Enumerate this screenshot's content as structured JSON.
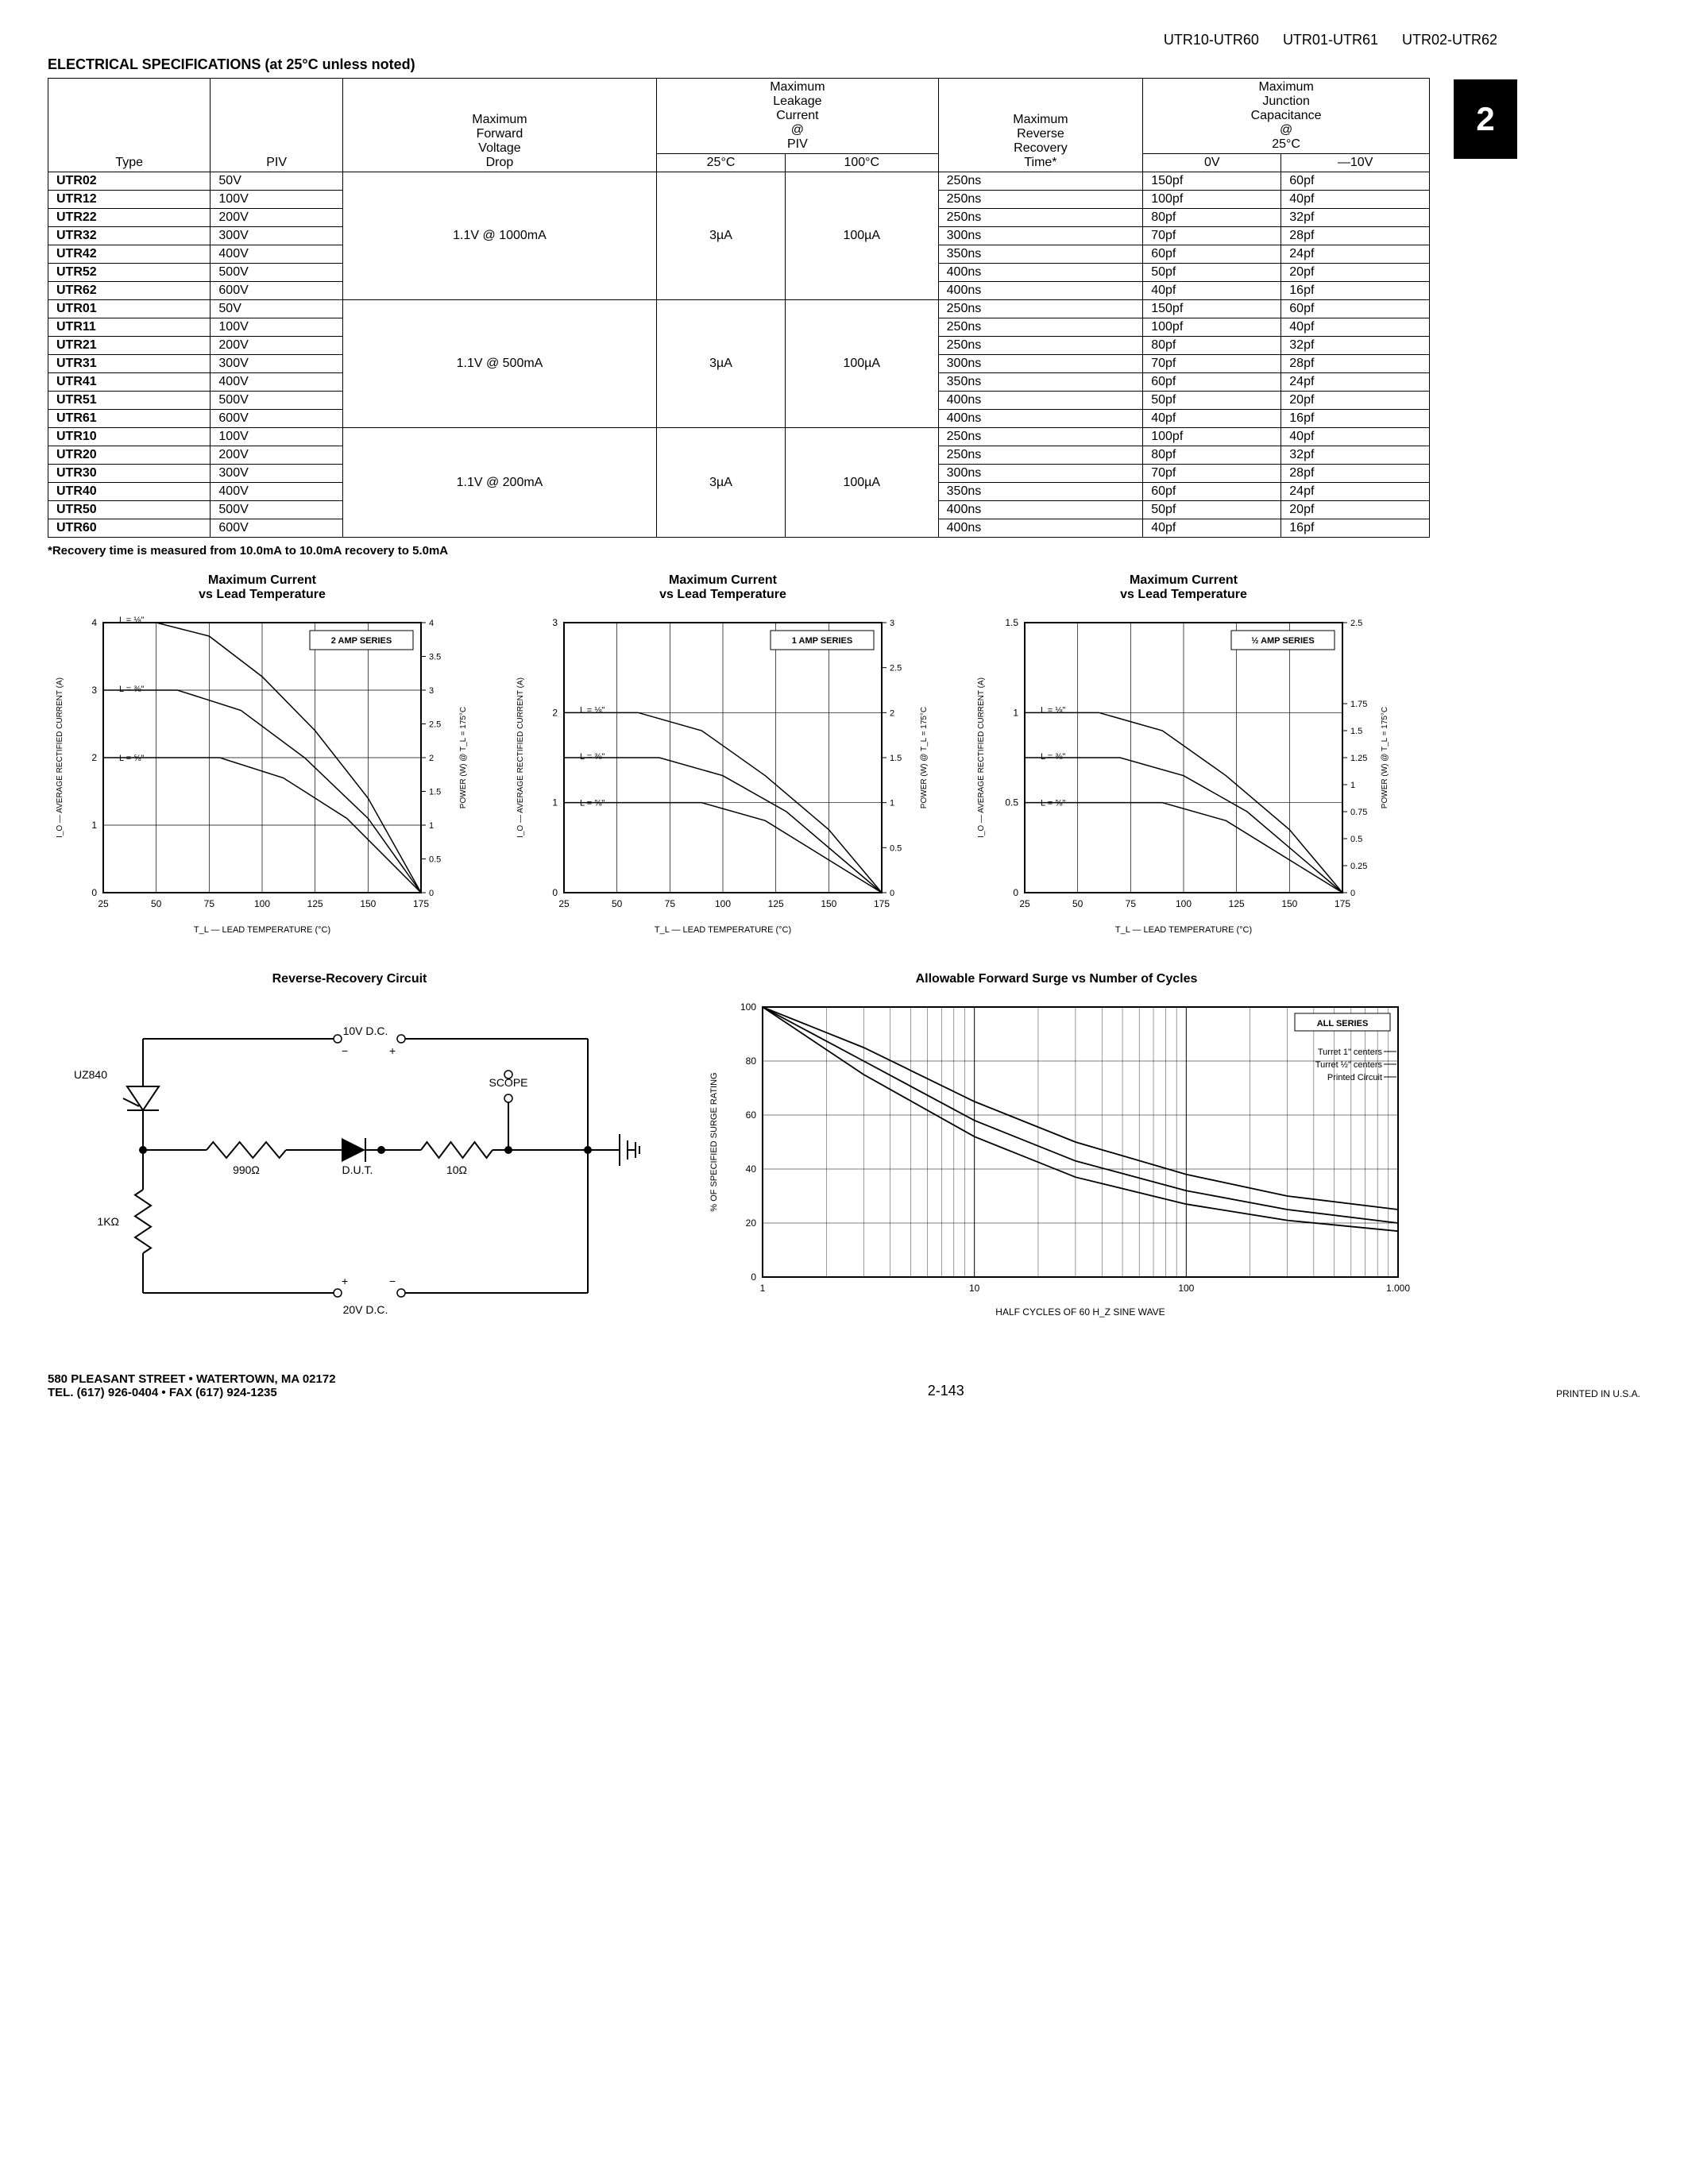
{
  "header": {
    "parts": [
      "UTR10-UTR60",
      "UTR01-UTR61",
      "UTR02-UTR62"
    ]
  },
  "section_title": "ELECTRICAL SPECIFICATIONS (at 25°C unless noted)",
  "tab_number": "2",
  "table": {
    "columns": {
      "type": "Type",
      "piv": "PIV",
      "fwd": "Maximum Forward Voltage Drop",
      "leak": "Maximum Leakage Current @ PIV",
      "leak_25": "25°C",
      "leak_100": "100°C",
      "rec": "Maximum Reverse Recovery Time*",
      "cap": "Maximum Junction Capacitance @ 25°C",
      "cap_0": "0V",
      "cap_10": "—10V"
    },
    "groups": [
      {
        "fwd": "1.1V @ 1000mA",
        "leak25": "3µA",
        "leak100": "100µA",
        "rows": [
          {
            "type": "UTR02",
            "piv": "50V",
            "rec": "250ns",
            "c0": "150pf",
            "c10": "60pf"
          },
          {
            "type": "UTR12",
            "piv": "100V",
            "rec": "250ns",
            "c0": "100pf",
            "c10": "40pf"
          },
          {
            "type": "UTR22",
            "piv": "200V",
            "rec": "250ns",
            "c0": "80pf",
            "c10": "32pf"
          },
          {
            "type": "UTR32",
            "piv": "300V",
            "rec": "300ns",
            "c0": "70pf",
            "c10": "28pf"
          },
          {
            "type": "UTR42",
            "piv": "400V",
            "rec": "350ns",
            "c0": "60pf",
            "c10": "24pf"
          },
          {
            "type": "UTR52",
            "piv": "500V",
            "rec": "400ns",
            "c0": "50pf",
            "c10": "20pf"
          },
          {
            "type": "UTR62",
            "piv": "600V",
            "rec": "400ns",
            "c0": "40pf",
            "c10": "16pf"
          }
        ]
      },
      {
        "fwd": "1.1V @ 500mA",
        "leak25": "3µA",
        "leak100": "100µA",
        "rows": [
          {
            "type": "UTR01",
            "piv": "50V",
            "rec": "250ns",
            "c0": "150pf",
            "c10": "60pf"
          },
          {
            "type": "UTR11",
            "piv": "100V",
            "rec": "250ns",
            "c0": "100pf",
            "c10": "40pf"
          },
          {
            "type": "UTR21",
            "piv": "200V",
            "rec": "250ns",
            "c0": "80pf",
            "c10": "32pf"
          },
          {
            "type": "UTR31",
            "piv": "300V",
            "rec": "300ns",
            "c0": "70pf",
            "c10": "28pf"
          },
          {
            "type": "UTR41",
            "piv": "400V",
            "rec": "350ns",
            "c0": "60pf",
            "c10": "24pf"
          },
          {
            "type": "UTR51",
            "piv": "500V",
            "rec": "400ns",
            "c0": "50pf",
            "c10": "20pf"
          },
          {
            "type": "UTR61",
            "piv": "600V",
            "rec": "400ns",
            "c0": "40pf",
            "c10": "16pf"
          }
        ]
      },
      {
        "fwd": "1.1V @ 200mA",
        "leak25": "3µA",
        "leak100": "100µA",
        "rows": [
          {
            "type": "UTR10",
            "piv": "100V",
            "rec": "250ns",
            "c0": "100pf",
            "c10": "40pf"
          },
          {
            "type": "UTR20",
            "piv": "200V",
            "rec": "250ns",
            "c0": "80pf",
            "c10": "32pf"
          },
          {
            "type": "UTR30",
            "piv": "300V",
            "rec": "300ns",
            "c0": "70pf",
            "c10": "28pf"
          },
          {
            "type": "UTR40",
            "piv": "400V",
            "rec": "350ns",
            "c0": "60pf",
            "c10": "24pf"
          },
          {
            "type": "UTR50",
            "piv": "500V",
            "rec": "400ns",
            "c0": "50pf",
            "c10": "20pf"
          },
          {
            "type": "UTR60",
            "piv": "600V",
            "rec": "400ns",
            "c0": "40pf",
            "c10": "16pf"
          }
        ]
      }
    ]
  },
  "footnote": "*Recovery time is measured from 10.0mA to 10.0mA recovery to 5.0mA",
  "charts": {
    "current_temp": {
      "title": "Maximum Current vs Lead Temperature",
      "xlabel": "T_L — LEAD TEMPERATURE (°C)",
      "ylabel_left": "I_O — AVERAGE RECTIFIED CURRENT (A)",
      "ylabel_right": "POWER (W) @ T_L = 175°C",
      "xlim": [
        25,
        175
      ],
      "xtick_step": 25,
      "background_color": "#ffffff",
      "grid_color": "#000000",
      "line_color": "#000000",
      "line_width": 1.5,
      "label_fontsize": 10,
      "title_fontsize": 12,
      "variants": [
        {
          "series_label": "2 AMP SERIES",
          "ylim_left": [
            0,
            4
          ],
          "ytick_left": [
            0,
            1,
            2,
            3,
            4
          ],
          "ylim_right": [
            0,
            4
          ],
          "ytick_right": [
            0,
            0.5,
            1,
            1.5,
            2,
            2.5,
            3,
            3.5,
            4
          ],
          "curves": [
            {
              "label": "L = ⅛\"",
              "points": [
                [
                  25,
                  4
                ],
                [
                  50,
                  4
                ],
                [
                  75,
                  3.8
                ],
                [
                  100,
                  3.2
                ],
                [
                  125,
                  2.4
                ],
                [
                  150,
                  1.4
                ],
                [
                  175,
                  0
                ]
              ]
            },
            {
              "label": "L = ⅜\"",
              "points": [
                [
                  25,
                  3
                ],
                [
                  60,
                  3
                ],
                [
                  90,
                  2.7
                ],
                [
                  120,
                  2.0
                ],
                [
                  150,
                  1.1
                ],
                [
                  175,
                  0
                ]
              ]
            },
            {
              "label": "L = ⅝\"",
              "points": [
                [
                  25,
                  2
                ],
                [
                  80,
                  2
                ],
                [
                  110,
                  1.7
                ],
                [
                  140,
                  1.1
                ],
                [
                  175,
                  0
                ]
              ]
            }
          ]
        },
        {
          "series_label": "1 AMP SERIES",
          "ylim_left": [
            0,
            3
          ],
          "ytick_left": [
            0,
            1,
            2,
            3
          ],
          "ylim_right": [
            0,
            3
          ],
          "ytick_right": [
            0,
            0.5,
            1,
            1.5,
            2,
            2.5,
            3
          ],
          "curves": [
            {
              "label": "L = ⅛\"",
              "points": [
                [
                  25,
                  2
                ],
                [
                  60,
                  2
                ],
                [
                  90,
                  1.8
                ],
                [
                  120,
                  1.3
                ],
                [
                  150,
                  0.7
                ],
                [
                  175,
                  0
                ]
              ]
            },
            {
              "label": "L = ⅜\"",
              "points": [
                [
                  25,
                  1.5
                ],
                [
                  70,
                  1.5
                ],
                [
                  100,
                  1.3
                ],
                [
                  130,
                  0.9
                ],
                [
                  175,
                  0
                ]
              ]
            },
            {
              "label": "L = ⅝\"",
              "points": [
                [
                  25,
                  1
                ],
                [
                  90,
                  1
                ],
                [
                  120,
                  0.8
                ],
                [
                  175,
                  0
                ]
              ]
            }
          ]
        },
        {
          "series_label": "½ AMP SERIES",
          "ylim_left": [
            0,
            1.5
          ],
          "ytick_left": [
            0,
            0.5,
            1,
            1.5
          ],
          "ylim_right": [
            0,
            2.5
          ],
          "ytick_right": [
            0,
            0.25,
            0.5,
            0.75,
            1,
            1.25,
            1.5,
            1.75,
            2.5
          ],
          "curves": [
            {
              "label": "L = ⅛\"",
              "points": [
                [
                  25,
                  1
                ],
                [
                  60,
                  1
                ],
                [
                  90,
                  0.9
                ],
                [
                  120,
                  0.65
                ],
                [
                  150,
                  0.35
                ],
                [
                  175,
                  0
                ]
              ]
            },
            {
              "label": "L = ⅜\"",
              "points": [
                [
                  25,
                  0.75
                ],
                [
                  70,
                  0.75
                ],
                [
                  100,
                  0.65
                ],
                [
                  130,
                  0.45
                ],
                [
                  175,
                  0
                ]
              ]
            },
            {
              "label": "L = ⅝\"",
              "points": [
                [
                  25,
                  0.5
                ],
                [
                  90,
                  0.5
                ],
                [
                  120,
                  0.4
                ],
                [
                  175,
                  0
                ]
              ]
            }
          ]
        }
      ]
    },
    "reverse_recovery": {
      "title": "Reverse-Recovery Circuit",
      "labels": {
        "uz840": "UZ840",
        "v10": "10V D.C.",
        "v20": "20V D.C.",
        "scope": "SCOPE",
        "r990": "990Ω",
        "r10": "10Ω",
        "r1k": "1KΩ",
        "dut": "D.U.T."
      },
      "line_color": "#000000"
    },
    "surge": {
      "title": "Allowable Forward Surge vs Number of Cycles",
      "xlabel": "HALF CYCLES OF 60 H_Z SINE WAVE",
      "ylabel": "% OF SPECIFIED SURGE RATING",
      "xlim": [
        1,
        1000
      ],
      "xscale": "log",
      "ylim": [
        0,
        100
      ],
      "ytick_step": 20,
      "series_label": "ALL SERIES",
      "legend": [
        "Turret 1\" centers",
        "Turret ½\" centers",
        "Printed Circuit"
      ],
      "curves": [
        {
          "points": [
            [
              1,
              100
            ],
            [
              3,
              85
            ],
            [
              10,
              65
            ],
            [
              30,
              50
            ],
            [
              100,
              38
            ],
            [
              300,
              30
            ],
            [
              1000,
              25
            ]
          ]
        },
        {
          "points": [
            [
              1,
              100
            ],
            [
              3,
              80
            ],
            [
              10,
              58
            ],
            [
              30,
              43
            ],
            [
              100,
              32
            ],
            [
              300,
              25
            ],
            [
              1000,
              20
            ]
          ]
        },
        {
          "points": [
            [
              1,
              100
            ],
            [
              3,
              75
            ],
            [
              10,
              52
            ],
            [
              30,
              37
            ],
            [
              100,
              27
            ],
            [
              300,
              21
            ],
            [
              1000,
              17
            ]
          ]
        }
      ],
      "background_color": "#ffffff",
      "grid_color": "#000000",
      "line_color": "#000000"
    }
  },
  "footer": {
    "address_line1": "580 PLEASANT STREET • WATERTOWN, MA 02172",
    "address_line2": "TEL. (617) 926-0404 • FAX (617) 924-1235",
    "page": "2-143",
    "printed": "PRINTED IN U.S.A."
  }
}
